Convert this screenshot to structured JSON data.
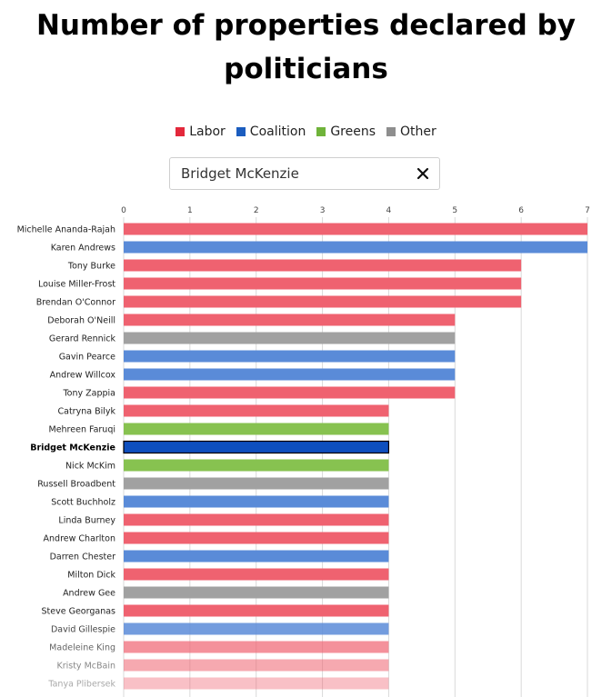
{
  "chart_data": {
    "type": "bar",
    "orientation": "horizontal",
    "title_lines": [
      "Number of properties declared by",
      "politicians"
    ],
    "xlim": [
      0,
      7
    ],
    "xticks": [
      "0",
      "1",
      "2",
      "3",
      "4",
      "5",
      "6",
      "7"
    ],
    "highlighted": "Bridget McKenzie",
    "legend": [
      {
        "label": "Labor",
        "color": "#e3283b"
      },
      {
        "label": "Coalition",
        "color": "#1b5dbf"
      },
      {
        "label": "Greens",
        "color": "#6fb33a"
      },
      {
        "label": "Other",
        "color": "#8e8e8e"
      }
    ],
    "party_colors": {
      "Labor": "#ef6270",
      "Coalition": "#5a8bd8",
      "Greens": "#87c250",
      "Other": "#a1a1a1"
    },
    "highlight_color": "#0e4fbe",
    "bars": [
      {
        "name": "Michelle Ananda-Rajah",
        "value": 7,
        "party": "Labor"
      },
      {
        "name": "Karen Andrews",
        "value": 7,
        "party": "Coalition"
      },
      {
        "name": "Tony Burke",
        "value": 6,
        "party": "Labor"
      },
      {
        "name": "Louise Miller-Frost",
        "value": 6,
        "party": "Labor"
      },
      {
        "name": "Brendan O'Connor",
        "value": 6,
        "party": "Labor"
      },
      {
        "name": "Deborah O'Neill",
        "value": 5,
        "party": "Labor"
      },
      {
        "name": "Gerard Rennick",
        "value": 5,
        "party": "Other"
      },
      {
        "name": "Gavin Pearce",
        "value": 5,
        "party": "Coalition"
      },
      {
        "name": "Andrew Willcox",
        "value": 5,
        "party": "Coalition"
      },
      {
        "name": "Tony Zappia",
        "value": 5,
        "party": "Labor"
      },
      {
        "name": "Catryna Bilyk",
        "value": 4,
        "party": "Labor"
      },
      {
        "name": "Mehreen Faruqi",
        "value": 4,
        "party": "Greens"
      },
      {
        "name": "Bridget McKenzie",
        "value": 4,
        "party": "Coalition"
      },
      {
        "name": "Nick McKim",
        "value": 4,
        "party": "Greens"
      },
      {
        "name": "Russell Broadbent",
        "value": 4,
        "party": "Other"
      },
      {
        "name": "Scott Buchholz",
        "value": 4,
        "party": "Coalition"
      },
      {
        "name": "Linda Burney",
        "value": 4,
        "party": "Labor"
      },
      {
        "name": "Andrew Charlton",
        "value": 4,
        "party": "Labor"
      },
      {
        "name": "Darren Chester",
        "value": 4,
        "party": "Coalition"
      },
      {
        "name": "Milton Dick",
        "value": 4,
        "party": "Labor"
      },
      {
        "name": "Andrew Gee",
        "value": 4,
        "party": "Other"
      },
      {
        "name": "Steve Georganas",
        "value": 4,
        "party": "Labor"
      },
      {
        "name": "David Gillespie",
        "value": 4,
        "party": "Coalition"
      },
      {
        "name": "Madeleine King",
        "value": 4,
        "party": "Labor"
      },
      {
        "name": "Kristy McBain",
        "value": 4,
        "party": "Labor"
      },
      {
        "name": "Tanya Plibersek",
        "value": 4,
        "party": "Labor"
      }
    ]
  },
  "search": {
    "value": "Bridget McKenzie",
    "clear_icon": "close-icon"
  }
}
